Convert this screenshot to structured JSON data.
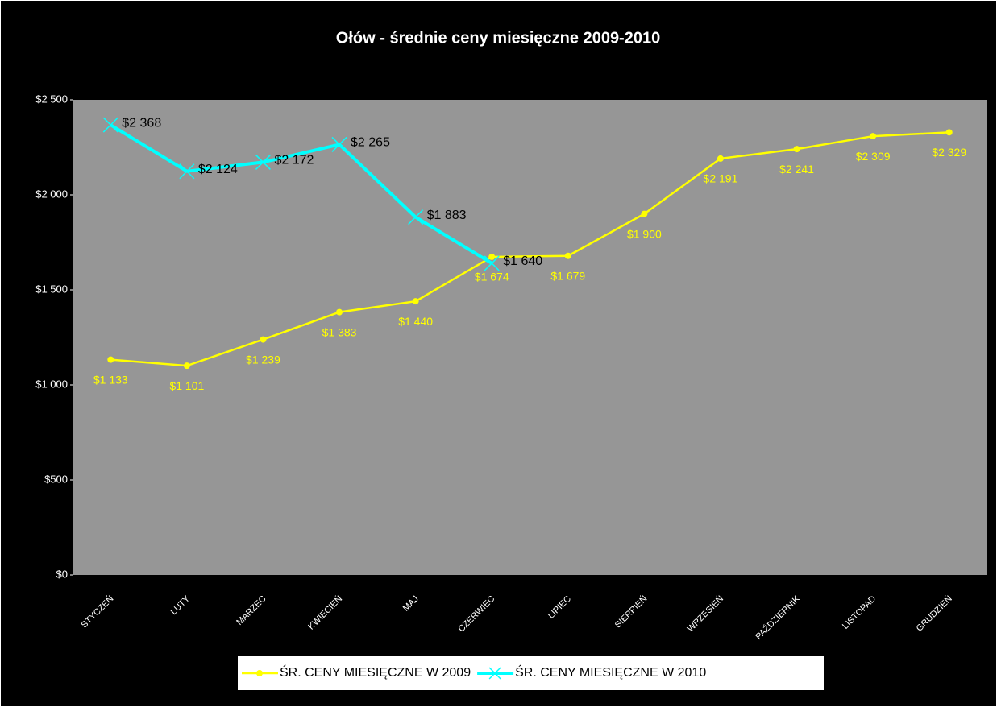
{
  "chart_data": {
    "type": "line",
    "title": "Ołów - średnie ceny miesięczne 2009-2010",
    "categories": [
      "STYCZEŃ",
      "LUTY",
      "MARZEC",
      "KWIECIEŃ",
      "MAJ",
      "CZERWIEC",
      "LIPIEC",
      "SIERPIEŃ",
      "WRZESIEŃ",
      "PAŹDZIERNIK",
      "LISTOPAD",
      "GRUDZIEŃ"
    ],
    "series": [
      {
        "name": "ŚR. CENY MIESIĘCZNE W 2009",
        "color": "#ffff00",
        "marker": "circle",
        "values": [
          1133,
          1101,
          1239,
          1383,
          1440,
          1674,
          1679,
          1900,
          2191,
          2241,
          2309,
          2329
        ],
        "value_labels": [
          "$1 133",
          "$1 101",
          "$1 239",
          "$1 383",
          "$1 440",
          "$1 674",
          "$1 679",
          "$1 900",
          "$2 191",
          "$2 241",
          "$2 309",
          "$2 329"
        ]
      },
      {
        "name": "ŚR. CENY MIESIĘCZNE W 2010",
        "color": "#00ffff",
        "marker": "x",
        "values": [
          2368,
          2124,
          2172,
          2265,
          1883,
          1640,
          null,
          null,
          null,
          null,
          null,
          null
        ],
        "value_labels": [
          "$2 368",
          "$2 124",
          "$2 172",
          "$2 265",
          "$1 883",
          "$1 640",
          null,
          null,
          null,
          null,
          null,
          null
        ]
      }
    ],
    "ylim": [
      0,
      2500
    ],
    "yticks": [
      {
        "value": 0,
        "label": "$0"
      },
      {
        "value": 500,
        "label": "$500"
      },
      {
        "value": 1000,
        "label": "$1 000"
      },
      {
        "value": 1500,
        "label": "$1 500"
      },
      {
        "value": 2000,
        "label": "$2 000"
      },
      {
        "value": 2500,
        "label": "$2 500"
      }
    ],
    "grid": false,
    "legend": "bottom"
  }
}
